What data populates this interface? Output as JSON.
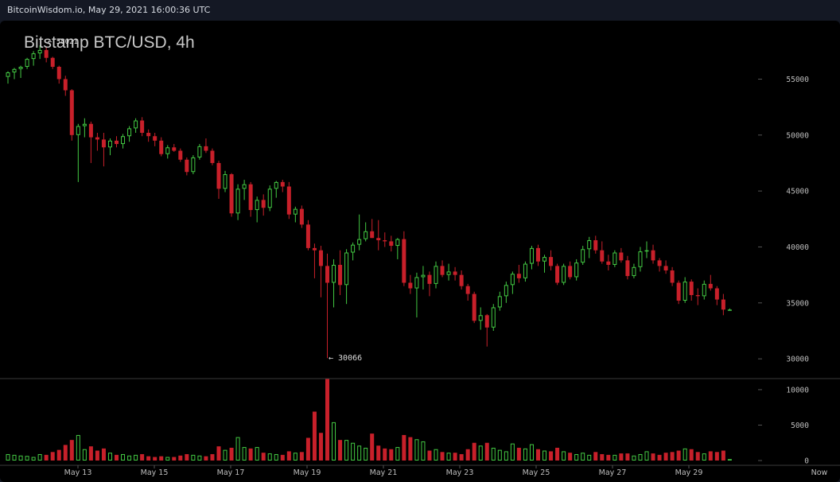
{
  "header": {
    "source_text": "BitcoinWisdom.io, May 29, 2021 16:00:36 UTC"
  },
  "chart_data": {
    "type": "candlestick",
    "title": "Bitstamp BTC/USD, 4h",
    "price_axis": {
      "ticks": [
        "55000",
        "50000",
        "45000",
        "40000",
        "35000",
        "30000"
      ],
      "range": [
        29300,
        58800
      ]
    },
    "volume_axis": {
      "ticks": [
        "10000",
        "5000",
        "0"
      ],
      "range": [
        0,
        11000
      ]
    },
    "x_axis": {
      "ticks": [
        "May 13",
        "May 15",
        "May 17",
        "May 19",
        "May 21",
        "May 23",
        "May 25",
        "May 27",
        "May 29",
        "Now"
      ]
    },
    "annotations": {
      "high_label": "← 58021",
      "high_value": 58021,
      "low_label": "← 30066",
      "low_value": 30066
    },
    "candles": [
      [
        55200,
        55700,
        54600,
        55600,
        900
      ],
      [
        55600,
        56000,
        55000,
        55900,
        800
      ],
      [
        55900,
        56200,
        55100,
        56100,
        700
      ],
      [
        56100,
        56900,
        55900,
        56800,
        650
      ],
      [
        56800,
        57500,
        56200,
        57300,
        500
      ],
      [
        57300,
        58021,
        56800,
        57600,
        900
      ],
      [
        57600,
        57900,
        56500,
        56900,
        800
      ],
      [
        56900,
        57000,
        55900,
        56100,
        1200
      ],
      [
        56100,
        56200,
        54600,
        55000,
        1500
      ],
      [
        55000,
        55300,
        53500,
        54000,
        2200
      ],
      [
        54000,
        54100,
        49500,
        50000,
        2900
      ],
      [
        50000,
        51000,
        45800,
        50800,
        3600
      ],
      [
        50800,
        51500,
        49800,
        51000,
        1600
      ],
      [
        51000,
        51200,
        47500,
        49800,
        2000
      ],
      [
        49800,
        50200,
        48600,
        49600,
        1400
      ],
      [
        49600,
        50200,
        47200,
        48900,
        1700
      ],
      [
        48900,
        49700,
        48200,
        49500,
        1100
      ],
      [
        49500,
        49900,
        48900,
        49200,
        800
      ],
      [
        49200,
        50100,
        48800,
        49900,
        900
      ],
      [
        49900,
        50800,
        49400,
        50600,
        700
      ],
      [
        50600,
        51500,
        50200,
        51300,
        800
      ],
      [
        51300,
        51600,
        49900,
        50200,
        900
      ],
      [
        50200,
        50500,
        49400,
        49900,
        600
      ],
      [
        49900,
        50200,
        49000,
        49500,
        500
      ],
      [
        49500,
        49800,
        48100,
        48300,
        600
      ],
      [
        48300,
        49100,
        47900,
        48900,
        500
      ],
      [
        48900,
        49200,
        48500,
        48600,
        500
      ],
      [
        48600,
        48800,
        47600,
        47800,
        700
      ],
      [
        47800,
        48000,
        46400,
        46700,
        900
      ],
      [
        46700,
        48200,
        46500,
        48000,
        800
      ],
      [
        48000,
        49200,
        47800,
        49000,
        700
      ],
      [
        49000,
        49700,
        48400,
        48600,
        600
      ],
      [
        48600,
        48800,
        47300,
        47500,
        900
      ],
      [
        47500,
        47700,
        44300,
        45200,
        2000
      ],
      [
        45200,
        46800,
        44900,
        46500,
        1500
      ],
      [
        46500,
        46600,
        42700,
        43000,
        1800
      ],
      [
        43000,
        45600,
        42400,
        45200,
        3300
      ],
      [
        45200,
        46000,
        44200,
        45600,
        1900
      ],
      [
        45600,
        45800,
        42700,
        43300,
        1700
      ],
      [
        43300,
        44500,
        42200,
        44200,
        1900
      ],
      [
        44200,
        44700,
        42800,
        43500,
        1100
      ],
      [
        43500,
        45500,
        43200,
        45200,
        1000
      ],
      [
        45200,
        45900,
        44400,
        45800,
        900
      ],
      [
        45800,
        46000,
        44900,
        45400,
        800
      ],
      [
        45400,
        45800,
        42500,
        42900,
        1300
      ],
      [
        42900,
        43600,
        42200,
        43400,
        1100
      ],
      [
        43400,
        43700,
        41700,
        42000,
        1200
      ],
      [
        42000,
        42400,
        39700,
        39900,
        3200
      ],
      [
        39900,
        40300,
        37200,
        39700,
        6900
      ],
      [
        39700,
        40100,
        35500,
        38300,
        3900
      ],
      [
        38300,
        39400,
        30066,
        36800,
        11500
      ],
      [
        36800,
        38900,
        34600,
        38400,
        5400
      ],
      [
        38400,
        39700,
        35700,
        36600,
        2900
      ],
      [
        36600,
        39800,
        34900,
        39500,
        2900
      ],
      [
        39500,
        40400,
        38800,
        40200,
        2500
      ],
      [
        40200,
        42900,
        39700,
        40700,
        2100
      ],
      [
        40700,
        42200,
        40500,
        41400,
        1800
      ],
      [
        41400,
        42500,
        40800,
        40800,
        3800
      ],
      [
        40800,
        42400,
        39700,
        40600,
        2100
      ],
      [
        40600,
        41300,
        40000,
        40500,
        1700
      ],
      [
        40500,
        41000,
        39600,
        40100,
        1600
      ],
      [
        40100,
        40800,
        38900,
        40700,
        1900
      ],
      [
        40700,
        41400,
        36500,
        36800,
        3600
      ],
      [
        36800,
        37500,
        35800,
        36300,
        3300
      ],
      [
        36300,
        37700,
        33700,
        37300,
        3000
      ],
      [
        37300,
        38300,
        36200,
        37500,
        2700
      ],
      [
        37500,
        37800,
        35600,
        36700,
        1400
      ],
      [
        36700,
        38700,
        36300,
        38300,
        1600
      ],
      [
        38300,
        38800,
        37300,
        37500,
        1200
      ],
      [
        37500,
        38500,
        37000,
        37800,
        1100
      ],
      [
        37800,
        38200,
        37000,
        37500,
        1100
      ],
      [
        37500,
        37900,
        36200,
        36500,
        900
      ],
      [
        36500,
        36700,
        35200,
        35800,
        1600
      ],
      [
        35800,
        36000,
        33200,
        33400,
        2500
      ],
      [
        33400,
        34600,
        32600,
        33900,
        2100
      ],
      [
        33900,
        34000,
        31100,
        32800,
        2500
      ],
      [
        32800,
        34900,
        32500,
        34600,
        1800
      ],
      [
        34600,
        36000,
        34300,
        35600,
        1500
      ],
      [
        35600,
        36900,
        35000,
        36600,
        1300
      ],
      [
        36600,
        37800,
        35800,
        37600,
        2400
      ],
      [
        37600,
        38400,
        36800,
        37200,
        1800
      ],
      [
        37200,
        38700,
        36900,
        38500,
        1700
      ],
      [
        38500,
        40100,
        38000,
        39900,
        2300
      ],
      [
        39900,
        40200,
        38300,
        38700,
        1600
      ],
      [
        38700,
        39300,
        37700,
        39100,
        1400
      ],
      [
        39100,
        39700,
        37900,
        38300,
        1300
      ],
      [
        38300,
        38500,
        36600,
        36800,
        1800
      ],
      [
        36800,
        38500,
        36600,
        38300,
        1300
      ],
      [
        38300,
        38700,
        37100,
        37300,
        1100
      ],
      [
        37300,
        38900,
        37000,
        38600,
        900
      ],
      [
        38600,
        40100,
        38400,
        39800,
        1100
      ],
      [
        39800,
        40900,
        39000,
        40600,
        800
      ],
      [
        40600,
        41000,
        39400,
        39700,
        1200
      ],
      [
        39700,
        40500,
        38500,
        38700,
        900
      ],
      [
        38700,
        39300,
        37900,
        38400,
        800
      ],
      [
        38400,
        39700,
        38200,
        39500,
        800
      ],
      [
        39500,
        39900,
        38600,
        38800,
        1000
      ],
      [
        38800,
        39200,
        37100,
        37400,
        1000
      ],
      [
        37400,
        38500,
        37200,
        38200,
        700
      ],
      [
        38200,
        40000,
        37800,
        39600,
        900
      ],
      [
        39600,
        40500,
        39000,
        39700,
        1300
      ],
      [
        39700,
        40200,
        38500,
        38800,
        1000
      ],
      [
        38800,
        39000,
        37800,
        38300,
        800
      ],
      [
        38300,
        38800,
        37600,
        37900,
        1100
      ],
      [
        37900,
        38200,
        36500,
        36800,
        1200
      ],
      [
        36800,
        37000,
        34900,
        35200,
        1400
      ],
      [
        35200,
        37300,
        35000,
        36900,
        1700
      ],
      [
        36900,
        37100,
        35200,
        35700,
        1600
      ],
      [
        35700,
        36300,
        34800,
        35600,
        1200
      ],
      [
        35600,
        37000,
        35300,
        36700,
        1000
      ],
      [
        36700,
        37500,
        36100,
        36300,
        1300
      ],
      [
        36300,
        36500,
        34800,
        35300,
        1200
      ],
      [
        35300,
        35800,
        33900,
        34400,
        1400
      ],
      [
        34400,
        34500,
        34300,
        34400,
        200
      ]
    ]
  }
}
